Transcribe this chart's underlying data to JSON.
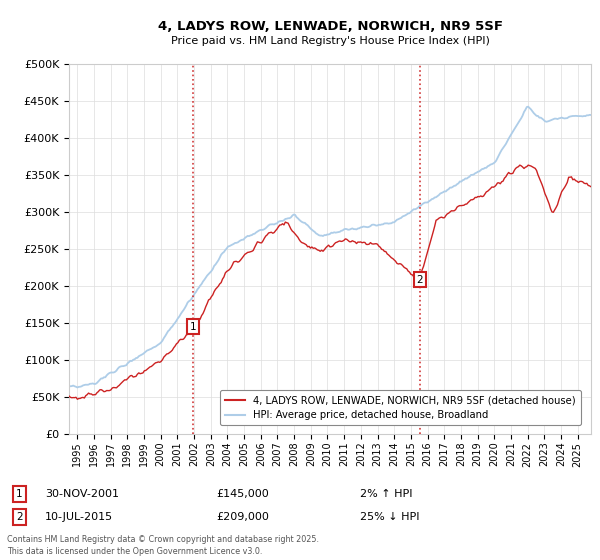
{
  "title_line1": "4, LADYS ROW, LENWADE, NORWICH, NR9 5SF",
  "title_line2": "Price paid vs. HM Land Registry's House Price Index (HPI)",
  "ytick_values": [
    0,
    50000,
    100000,
    150000,
    200000,
    250000,
    300000,
    350000,
    400000,
    450000,
    500000
  ],
  "ylim": [
    0,
    500000
  ],
  "xlim_start": 1994.5,
  "xlim_end": 2025.8,
  "xtick_years": [
    1995,
    1996,
    1997,
    1998,
    1999,
    2000,
    2001,
    2002,
    2003,
    2004,
    2005,
    2006,
    2007,
    2008,
    2009,
    2010,
    2011,
    2012,
    2013,
    2014,
    2015,
    2016,
    2017,
    2018,
    2019,
    2020,
    2021,
    2022,
    2023,
    2024,
    2025
  ],
  "hpi_color": "#aecde8",
  "price_color": "#cc2222",
  "vline_color": "#cc2222",
  "vline_style": ":",
  "marker1_x": 2001.917,
  "marker1_y": 145000,
  "marker1_label": "1",
  "marker2_x": 2015.528,
  "marker2_y": 209000,
  "marker2_label": "2",
  "legend_label1": "4, LADYS ROW, LENWADE, NORWICH, NR9 5SF (detached house)",
  "legend_label2": "HPI: Average price, detached house, Broadland",
  "annotation1_num": "1",
  "annotation1_date": "30-NOV-2001",
  "annotation1_price": "£145,000",
  "annotation1_hpi": "2% ↑ HPI",
  "annotation2_num": "2",
  "annotation2_date": "10-JUL-2015",
  "annotation2_price": "£209,000",
  "annotation2_hpi": "25% ↓ HPI",
  "footer": "Contains HM Land Registry data © Crown copyright and database right 2025.\nThis data is licensed under the Open Government Licence v3.0.",
  "background_color": "#ffffff",
  "grid_color": "#dddddd"
}
